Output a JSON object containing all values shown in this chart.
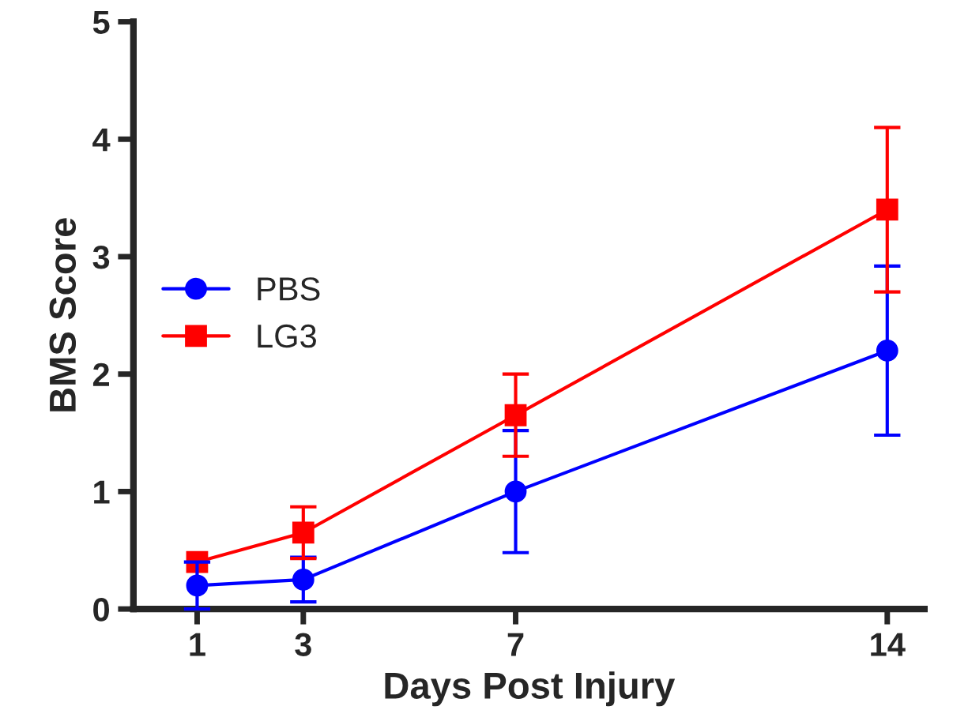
{
  "chart_data": {
    "type": "line",
    "xlabel": "Days Post Injury",
    "ylabel": "BMS Score",
    "x": [
      1,
      3,
      7,
      14
    ],
    "series": [
      {
        "name": "PBS",
        "color": "#0000ff",
        "marker": "circle",
        "values": [
          0.2,
          0.25,
          1.0,
          2.2
        ],
        "errors": [
          0.2,
          0.19,
          0.52,
          0.72
        ]
      },
      {
        "name": "LG3",
        "color": "#ff0000",
        "marker": "square",
        "values": [
          0.4,
          0.65,
          1.65,
          3.4
        ],
        "errors": [
          null,
          0.22,
          0.35,
          0.7
        ]
      }
    ],
    "xlim": [
      -0.2,
      14.7
    ],
    "xticks": [
      1,
      3,
      7,
      14
    ],
    "ylim": [
      0,
      5
    ],
    "yticks": [
      0,
      1,
      2,
      3,
      4,
      5
    ],
    "grid": false,
    "legend": "center left",
    "line_style": "solid"
  }
}
